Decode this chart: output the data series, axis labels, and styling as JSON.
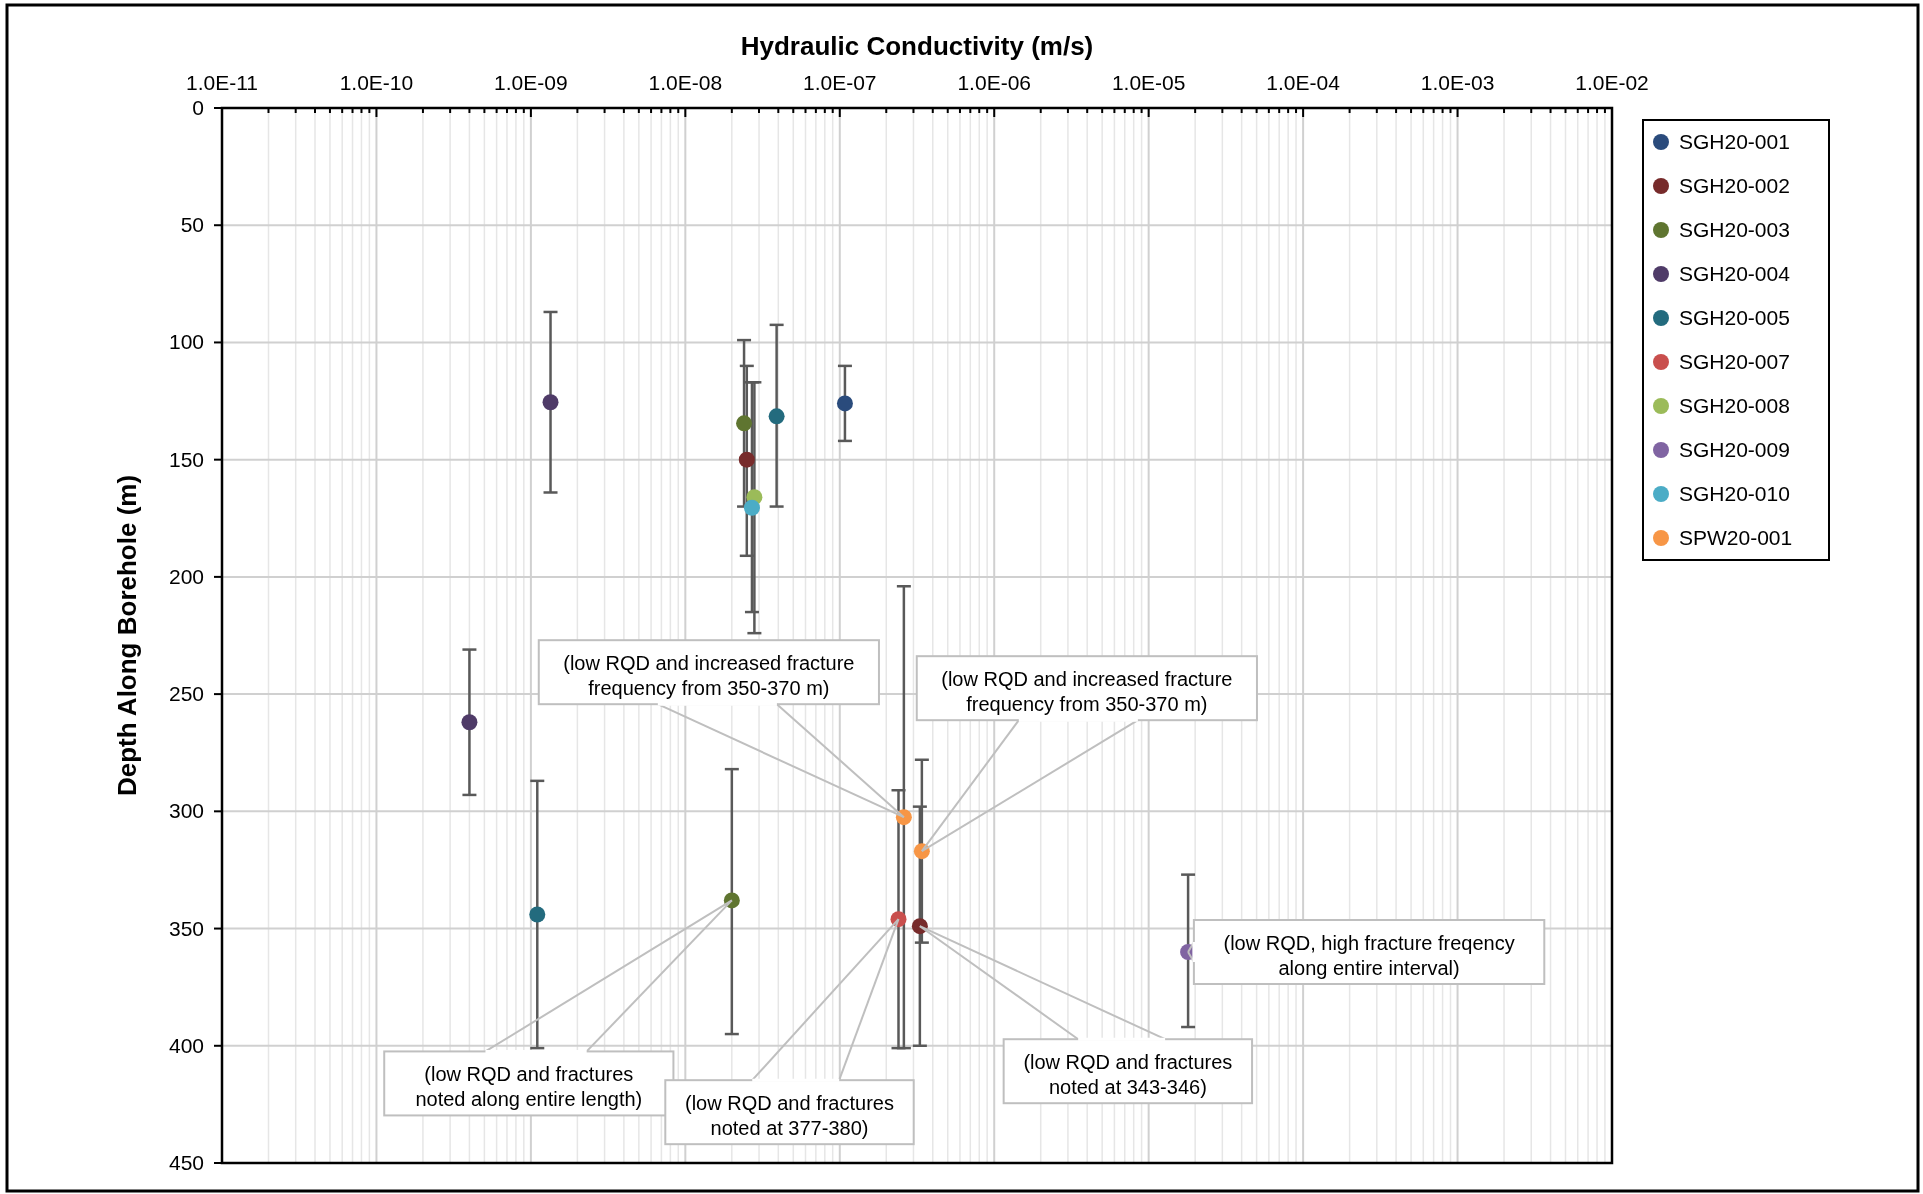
{
  "chart_data": {
    "type": "scatter",
    "xlabel": "Hydraulic Conductivity (m/s)",
    "ylabel": "Depth Along Borehole (m)",
    "log": "x",
    "xlim": [
      1e-11,
      0.01
    ],
    "ylim": [
      450,
      0
    ],
    "xticks": [
      {
        "value": 1e-11,
        "label": "1.0E-11"
      },
      {
        "value": 1e-10,
        "label": "1.0E-10"
      },
      {
        "value": 1e-09,
        "label": "1.0E-09"
      },
      {
        "value": 1e-08,
        "label": "1.0E-08"
      },
      {
        "value": 1e-07,
        "label": "1.0E-07"
      },
      {
        "value": 1e-06,
        "label": "1.0E-06"
      },
      {
        "value": 1e-05,
        "label": "1.0E-05"
      },
      {
        "value": 0.0001,
        "label": "1.0E-04"
      },
      {
        "value": 0.001,
        "label": "1.0E-03"
      },
      {
        "value": 0.01,
        "label": "1.0E-02"
      }
    ],
    "yticks": [
      0,
      50,
      100,
      150,
      200,
      250,
      300,
      350,
      400,
      450
    ],
    "grid": true,
    "legend": "right",
    "marker": "circle",
    "series": [
      {
        "name": "SGH20-001",
        "color": "#2a4b7c",
        "x": [
          1.08e-07
        ],
        "values": [
          126
        ],
        "errors": [
          [
            110,
            142
          ]
        ]
      },
      {
        "name": "SGH20-002",
        "color": "#772b2b",
        "x": [
          2.5e-08,
          3.3e-07
        ],
        "values": [
          150,
          349
        ],
        "errors": [
          [
            110,
            191
          ],
          [
            298,
            400
          ]
        ]
      },
      {
        "name": "SGH20-003",
        "color": "#5f7530",
        "x": [
          2.4e-08,
          2e-08
        ],
        "values": [
          134.5,
          338
        ],
        "errors": [
          [
            99,
            170
          ],
          [
            282,
            395
          ]
        ]
      },
      {
        "name": "SGH20-004",
        "color": "#4f3b68",
        "x": [
          1.34e-09,
          4e-10
        ],
        "values": [
          125.5,
          262
        ],
        "errors": [
          [
            87,
            164
          ],
          [
            231,
            293
          ]
        ]
      },
      {
        "name": "SGH20-005",
        "color": "#236b7e",
        "x": [
          3.9e-08,
          1.1e-09
        ],
        "values": [
          131.5,
          344
        ],
        "errors": [
          [
            92.5,
            170
          ],
          [
            287,
            401
          ]
        ]
      },
      {
        "name": "SGH20-007",
        "color": "#c94f4d",
        "x": [
          2.4e-07
        ],
        "values": [
          346
        ],
        "errors": [
          [
            291,
            401
          ]
        ]
      },
      {
        "name": "SGH20-008",
        "color": "#9bbb59",
        "x": [
          2.8e-08
        ],
        "values": [
          166
        ],
        "errors": [
          [
            117,
            224
          ]
        ]
      },
      {
        "name": "SGH20-009",
        "color": "#8064a2",
        "x": [
          1.8e-05
        ],
        "values": [
          360
        ],
        "errors": [
          [
            327,
            392
          ]
        ]
      },
      {
        "name": "SGH20-010",
        "color": "#4bacc6",
        "x": [
          2.7e-08
        ],
        "values": [
          170.5
        ],
        "errors": [
          [
            117,
            215
          ]
        ]
      },
      {
        "name": "SPW20-001",
        "color": "#f79646",
        "x": [
          2.6e-07,
          3.4e-07
        ],
        "values": [
          302.5,
          317
        ],
        "errors": [
          [
            204,
            401
          ],
          [
            278,
            356
          ]
        ]
      }
    ],
    "annotations": [
      {
        "text": "(low RQD and increased fracture\nfrequency from 350-370 m)",
        "x": 2.6e-07,
        "y": 302.5
      },
      {
        "text": "(low RQD and increased fracture\nfrequency from 350-370 m)",
        "x": 3.4e-07,
        "y": 317
      },
      {
        "text": "(low RQD and fractures\nnoted along entire length)",
        "x": 2e-08,
        "y": 338
      },
      {
        "text": "(low RQD and fractures\nnoted at 377-380)",
        "x": 2.4e-07,
        "y": 346
      },
      {
        "text": "(low RQD and fractures\nnoted at 343-346)",
        "x": 3.3e-07,
        "y": 349
      },
      {
        "text": "(low RQD, high fracture freqency\nalong entire interval)",
        "x": 1.8e-05,
        "y": 360
      }
    ]
  }
}
